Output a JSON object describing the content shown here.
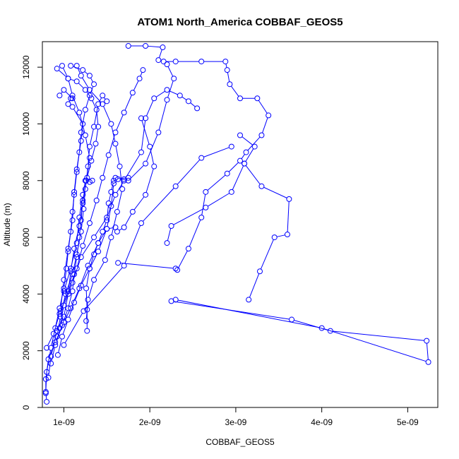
{
  "chart_data": {
    "type": "scatter",
    "title": "ATOM1 North_America COBBAF_GEOS5",
    "xlabel": "COBBAF_GEOS5",
    "ylabel": "Altitude (m)",
    "xlim": [
      7.5e-10,
      5.35e-09
    ],
    "ylim": [
      0,
      12900
    ],
    "grid": false,
    "legend": "none",
    "color": "#0000ff",
    "x_ticks": [
      {
        "value": 1e-09,
        "label": "1e-09"
      },
      {
        "value": 2e-09,
        "label": "2e-09"
      },
      {
        "value": 3e-09,
        "label": "3e-09"
      },
      {
        "value": 4e-09,
        "label": "4e-09"
      },
      {
        "value": 5e-09,
        "label": "5e-09"
      }
    ],
    "y_ticks": [
      {
        "value": 0,
        "label": "0"
      },
      {
        "value": 2000,
        "label": "2000"
      },
      {
        "value": 4000,
        "label": "4000"
      },
      {
        "value": 6000,
        "label": "6000"
      },
      {
        "value": 8000,
        "label": "8000"
      },
      {
        "value": 10000,
        "label": "10000"
      },
      {
        "value": 12000,
        "label": "12000"
      }
    ],
    "series": [
      {
        "points": [
          [
            1e-09,
            2200
          ],
          [
            1.23e-09,
            3400
          ],
          [
            1.7e-09,
            5000
          ],
          [
            1.9e-09,
            6500
          ],
          [
            2.3e-09,
            7800
          ],
          [
            2.6e-09,
            8800
          ],
          [
            2.95e-09,
            9200
          ]
        ]
      },
      {
        "points": [
          [
            2.25e-09,
            3750
          ],
          [
            3.65e-09,
            3100
          ],
          [
            4.1e-09,
            2700
          ],
          [
            5.22e-09,
            2350
          ],
          [
            5.24e-09,
            1600
          ],
          [
            4e-09,
            2800
          ],
          [
            2.3e-09,
            3800
          ]
        ]
      },
      {
        "points": [
          [
            1.63e-09,
            5100
          ],
          [
            2.3e-09,
            4900
          ],
          [
            2.32e-09,
            4850
          ],
          [
            2.45e-09,
            5600
          ],
          [
            2.6e-09,
            6700
          ],
          [
            2.65e-09,
            7600
          ],
          [
            2.9e-09,
            8250
          ],
          [
            3.05e-09,
            8700
          ],
          [
            3.12e-09,
            9000
          ],
          [
            3.3e-09,
            9600
          ],
          [
            3.38e-09,
            10300
          ],
          [
            3.25e-09,
            10900
          ],
          [
            3.05e-09,
            10900
          ],
          [
            2.93e-09,
            11400
          ],
          [
            2.9e-09,
            11900
          ],
          [
            2.88e-09,
            12200
          ],
          [
            2.6e-09,
            12200
          ],
          [
            2.3e-09,
            12200
          ],
          [
            2.16e-09,
            12200
          ],
          [
            2.1e-09,
            12250
          ],
          [
            2.15e-09,
            12700
          ],
          [
            1.95e-09,
            12750
          ],
          [
            1.75e-09,
            12750
          ]
        ]
      },
      {
        "points": [
          [
            2.2e-09,
            5800
          ],
          [
            2.25e-09,
            6400
          ],
          [
            2.65e-09,
            7050
          ],
          [
            2.95e-09,
            7600
          ],
          [
            3.1e-09,
            8600
          ],
          [
            3.22e-09,
            9200
          ],
          [
            3.05e-09,
            9600
          ]
        ]
      },
      {
        "points": [
          [
            3.15e-09,
            3800
          ],
          [
            3.28e-09,
            4800
          ],
          [
            3.45e-09,
            6000
          ],
          [
            3.6e-09,
            6100
          ],
          [
            3.62e-09,
            7350
          ],
          [
            3.3e-09,
            7800
          ],
          [
            3.1e-09,
            8600
          ]
        ]
      },
      {
        "points": [
          [
            8.2e-10,
            1050
          ],
          [
            8.5e-10,
            1800
          ],
          [
            9.2e-10,
            2700
          ],
          [
            1e-09,
            3200
          ],
          [
            1.05e-09,
            4000
          ],
          [
            1.08e-09,
            4800
          ],
          [
            1.12e-09,
            5600
          ],
          [
            1.18e-09,
            6400
          ],
          [
            1.22e-09,
            7200
          ],
          [
            1.26e-09,
            8000
          ],
          [
            1.3e-09,
            8800
          ],
          [
            1.25e-09,
            9600
          ],
          [
            1.18e-09,
            10400
          ],
          [
            1.1e-09,
            11000
          ],
          [
            1.05e-09,
            11600
          ],
          [
            9.8e-10,
            12050
          ]
        ]
      },
      {
        "points": [
          [
            9.5e-10,
            2800
          ],
          [
            1e-09,
            3600
          ],
          [
            1.1e-09,
            4400
          ],
          [
            1.2e-09,
            5300
          ],
          [
            1.35e-09,
            6000
          ],
          [
            1.5e-09,
            6700
          ],
          [
            1.6e-09,
            7500
          ],
          [
            1.7e-09,
            8000
          ],
          [
            1.9e-09,
            9000
          ],
          [
            1.95e-09,
            10200
          ],
          [
            2.05e-09,
            10900
          ],
          [
            2.2e-09,
            11200
          ],
          [
            2.35e-09,
            11000
          ],
          [
            2.45e-09,
            10800
          ],
          [
            2.55e-09,
            10550
          ]
        ]
      },
      {
        "points": [
          [
            1.26e-09,
            3050
          ],
          [
            1.28e-09,
            3800
          ],
          [
            1.35e-09,
            4500
          ],
          [
            1.48e-09,
            5200
          ],
          [
            1.55e-09,
            6000
          ],
          [
            1.62e-09,
            6900
          ],
          [
            1.68e-09,
            7700
          ],
          [
            1.65e-09,
            8500
          ],
          [
            1.6e-09,
            9300
          ],
          [
            1.55e-09,
            10000
          ],
          [
            1.45e-09,
            10700
          ],
          [
            1.3e-09,
            11200
          ],
          [
            1.2e-09,
            11700
          ],
          [
            1.15e-09,
            12050
          ]
        ]
      },
      {
        "points": [
          [
            8e-10,
            2100
          ],
          [
            8.8e-10,
            2600
          ],
          [
            9.5e-10,
            3300
          ],
          [
            1.05e-09,
            4100
          ],
          [
            1.15e-09,
            4900
          ],
          [
            1.22e-09,
            5700
          ],
          [
            1.3e-09,
            6500
          ],
          [
            1.38e-09,
            7300
          ],
          [
            1.45e-09,
            8100
          ],
          [
            1.52e-09,
            8900
          ],
          [
            1.6e-09,
            9700
          ],
          [
            1.7e-09,
            10400
          ],
          [
            1.8e-09,
            11100
          ],
          [
            1.88e-09,
            11600
          ],
          [
            1.92e-09,
            11900
          ]
        ]
      },
      {
        "points": [
          [
            9.3e-10,
            1850
          ],
          [
            9.8e-10,
            2500
          ],
          [
            1.05e-09,
            3100
          ],
          [
            1.12e-09,
            3700
          ],
          [
            1.2e-09,
            4300
          ],
          [
            1.3e-09,
            4900
          ],
          [
            1.4e-09,
            5500
          ],
          [
            1.5e-09,
            6300
          ],
          [
            1.55e-09,
            7100
          ],
          [
            1.58e-09,
            7900
          ],
          [
            1.6e-09,
            8100
          ],
          [
            1.75e-09,
            8000
          ],
          [
            1.95e-09,
            8600
          ],
          [
            2.1e-09,
            9700
          ],
          [
            2.2e-09,
            10850
          ],
          [
            2.28e-09,
            11600
          ],
          [
            2.2e-09,
            12100
          ]
        ]
      },
      {
        "points": [
          [
            7.9e-10,
            500
          ],
          [
            7.9e-10,
            1000
          ],
          [
            8.2e-10,
            1700
          ],
          [
            9e-10,
            2300
          ],
          [
            1e-09,
            3000
          ],
          [
            1.08e-09,
            3500
          ],
          [
            1.18e-09,
            4200
          ],
          [
            1.28e-09,
            5000
          ],
          [
            1.4e-09,
            5800
          ],
          [
            1.5e-09,
            6300
          ],
          [
            1.6e-09,
            6350
          ],
          [
            1.62e-09,
            6200
          ],
          [
            1.7e-09,
            6350
          ],
          [
            1.8e-09,
            6900
          ],
          [
            1.95e-09,
            7500
          ],
          [
            2.05e-09,
            8500
          ],
          [
            2e-09,
            9200
          ],
          [
            1.9e-09,
            10200
          ]
        ]
      },
      {
        "points": [
          [
            9.2e-10,
            2500
          ],
          [
            9.6e-10,
            3200
          ],
          [
            1.02e-09,
            4000
          ],
          [
            1.1e-09,
            4700
          ],
          [
            1.15e-09,
            5400
          ],
          [
            1.2e-09,
            6200
          ],
          [
            1.23e-09,
            7000
          ],
          [
            1.25e-09,
            7700
          ],
          [
            1.28e-09,
            8500
          ],
          [
            1.3e-09,
            9200
          ],
          [
            1.35e-09,
            9900
          ],
          [
            1.4e-09,
            10700
          ],
          [
            1.45e-09,
            11000
          ],
          [
            1.5e-09,
            10800
          ]
        ]
      },
      {
        "points": [
          [
            9.6e-10,
            3400
          ],
          [
            1e-09,
            4500
          ],
          [
            1.05e-09,
            5600
          ],
          [
            1.1e-09,
            6600
          ],
          [
            1.12e-09,
            7600
          ],
          [
            1.15e-09,
            8400
          ],
          [
            1.2e-09,
            9400
          ],
          [
            1.22e-09,
            10000
          ],
          [
            1.1e-09,
            10600
          ],
          [
            1.05e-09,
            10700
          ],
          [
            1.08e-09,
            10900
          ],
          [
            1.1e-09,
            10900
          ],
          [
            1e-09,
            11200
          ],
          [
            9.5e-10,
            11000
          ]
        ]
      },
      {
        "points": [
          [
            1e-09,
            4100
          ],
          [
            1.08e-09,
            4900
          ],
          [
            1.15e-09,
            5800
          ],
          [
            1.18e-09,
            6700
          ],
          [
            1.22e-09,
            7500
          ],
          [
            1.25e-09,
            8000
          ],
          [
            1.3e-09,
            7950
          ],
          [
            1.33e-09,
            8000
          ]
        ]
      },
      {
        "points": [
          [
            1.27e-09,
            2700
          ],
          [
            1.27e-09,
            3450
          ],
          [
            1.26e-09,
            4200
          ],
          [
            1.3e-09,
            4900
          ],
          [
            1.35e-09,
            5400
          ],
          [
            1.4e-09,
            5800
          ],
          [
            1.45e-09,
            6200
          ],
          [
            1.5e-09,
            6600
          ],
          [
            1.52e-09,
            7200
          ],
          [
            1.55e-09,
            7600
          ],
          [
            1.58e-09,
            8000
          ],
          [
            1.63e-09,
            8050
          ],
          [
            1.7e-09,
            8050
          ],
          [
            1.75e-09,
            8100
          ]
        ]
      },
      {
        "points": [
          [
            8e-10,
            200
          ],
          [
            7.9e-10,
            550
          ],
          [
            8e-10,
            1250
          ],
          [
            8.5e-10,
            2100
          ],
          [
            9e-10,
            2800
          ],
          [
            9.5e-10,
            3500
          ],
          [
            1e-09,
            4200
          ],
          [
            1.03e-09,
            4900
          ],
          [
            1.05e-09,
            5500
          ],
          [
            1.08e-09,
            6200
          ],
          [
            1.1e-09,
            6900
          ],
          [
            1.12e-09,
            7500
          ],
          [
            1.15e-09,
            8300
          ],
          [
            1.18e-09,
            9000
          ],
          [
            1.2e-09,
            9700
          ],
          [
            1.25e-09,
            10500
          ],
          [
            1.3e-09,
            11000
          ],
          [
            1.35e-09,
            11400
          ],
          [
            1.3e-09,
            11700
          ],
          [
            1.22e-09,
            11900
          ],
          [
            1.08e-09,
            12050
          ]
        ]
      },
      {
        "points": [
          [
            8.5e-10,
            1550
          ],
          [
            9e-10,
            2200
          ],
          [
            9.8e-10,
            2900
          ],
          [
            1.05e-09,
            3500
          ],
          [
            1.1e-09,
            4100
          ],
          [
            1.12e-09,
            4700
          ],
          [
            1.15e-09,
            5300
          ],
          [
            1.18e-09,
            6000
          ],
          [
            1.2e-09,
            6600
          ],
          [
            1.22e-09,
            7300
          ],
          [
            1.27e-09,
            8100
          ],
          [
            1.32e-09,
            8700
          ],
          [
            1.37e-09,
            9300
          ],
          [
            1.4e-09,
            9900
          ],
          [
            1.38e-09,
            10500
          ],
          [
            1.32e-09,
            10900
          ],
          [
            1.25e-09,
            11200
          ],
          [
            1.15e-09,
            11500
          ],
          [
            1.05e-09,
            11600
          ],
          [
            9.2e-10,
            11950
          ]
        ]
      }
    ]
  }
}
